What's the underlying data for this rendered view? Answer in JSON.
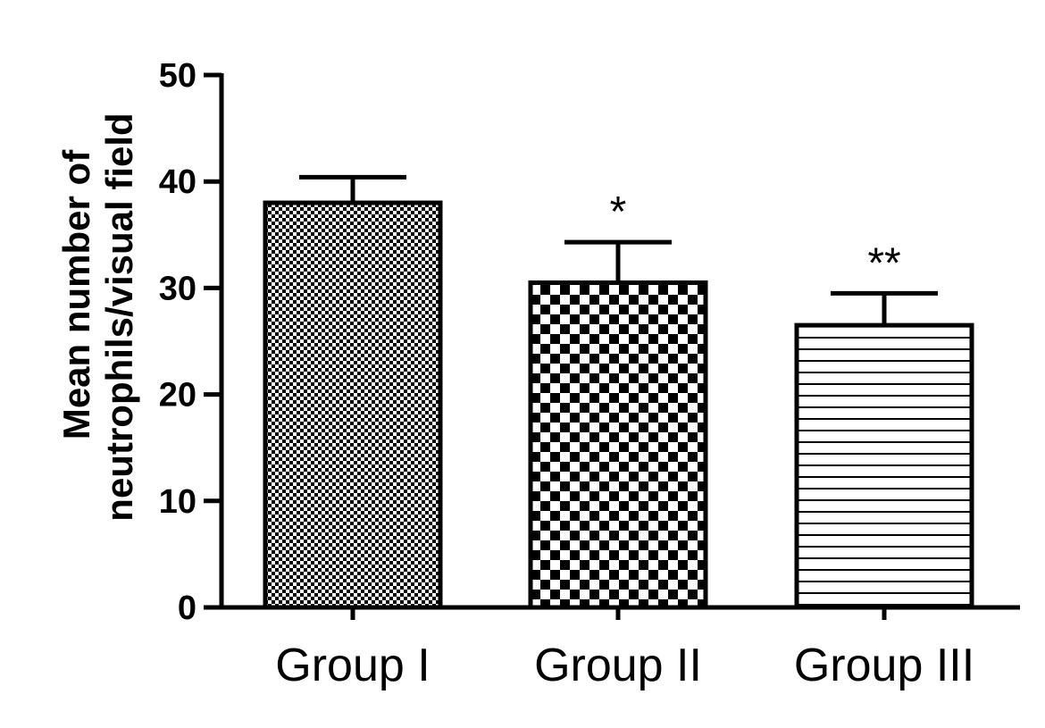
{
  "chart_data": {
    "type": "bar",
    "categories": [
      "Group I",
      "Group II",
      "Group III"
    ],
    "values": [
      38,
      30.5,
      26.5
    ],
    "errors": [
      2.4,
      3.8,
      3.0
    ],
    "annotations": [
      "",
      "*",
      "**"
    ],
    "patterns": [
      "fine-checker",
      "coarse-checker",
      "horizontal-lines"
    ],
    "ylabel_lines": [
      "Mean number of",
      "neutrophils/visual field"
    ],
    "xlabel": "",
    "ylim": [
      0,
      50
    ],
    "yticks": [
      0,
      10,
      20,
      30,
      40,
      50
    ],
    "grid": false,
    "legend": "none",
    "bar_color": "#ffffff",
    "edge_color": "#000000"
  }
}
